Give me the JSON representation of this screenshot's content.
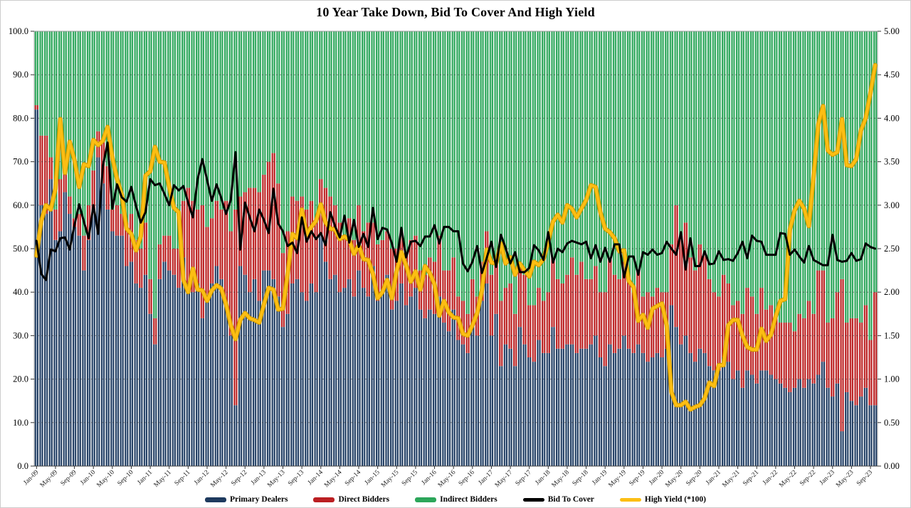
{
  "chart_data": {
    "type": "bar",
    "subtype": "stacked-100-bars-with-lines",
    "title": "10 Year Take Down, Bid To Cover And High Yield",
    "n_points": 178,
    "x_start": "Jan-09",
    "x_end": "Oct-23",
    "tick_every": 4,
    "x_ticklabels": [
      "Jan-09",
      "May-09",
      "Sep-09",
      "Jan-10",
      "May-10",
      "Sep-10",
      "Jan-11",
      "May-11",
      "Sep-11",
      "Jan-12",
      "May-12",
      "Sep-12",
      "Jan-13",
      "May-13",
      "Sep-13",
      "Jan-14",
      "May-14",
      "Sep-14",
      "Jan-15",
      "May-15",
      "Sep-15",
      "Jan-16",
      "May-16",
      "Sep-16",
      "Jan-17",
      "May-17",
      "Sep-17",
      "Jan-18",
      "May-18",
      "Sep-18",
      "Jan-19",
      "May-19",
      "Sep-19",
      "Jan-20",
      "May-20",
      "Sep-20",
      "Jan-21",
      "May-21",
      "Sep-21",
      "Jan-22",
      "May-22",
      "Sep-22",
      "Jan-23",
      "May-23",
      "Sep-23"
    ],
    "left_axis": {
      "min": 0,
      "max": 100,
      "step": 10,
      "decimals": 1
    },
    "right_axis": {
      "min": 0,
      "max": 5,
      "step": 0.5,
      "decimals": 2
    },
    "grid": "horizontal-dashed",
    "legend_position": "bottom",
    "colors": {
      "background": "#ffffff",
      "grid": "#2f2f2f",
      "axis_text": "#000000"
    },
    "series": [
      {
        "name": "Primary Dealers",
        "type": "bar",
        "axis": "left",
        "color": "#1e3a5e",
        "highlight": "#b0c0d4",
        "values": [
          82,
          60,
          58,
          66,
          52,
          54,
          63,
          58,
          55,
          53,
          45,
          52,
          58,
          71,
          65,
          59,
          54,
          53,
          53,
          46,
          47,
          42,
          41,
          44,
          35,
          28,
          43,
          47,
          45,
          44,
          41,
          48,
          42,
          40,
          42,
          34,
          38,
          42,
          46,
          43,
          37,
          30,
          14,
          46,
          44,
          40,
          43,
          38,
          45,
          45,
          43,
          39,
          32,
          35,
          42,
          43,
          40,
          38,
          42,
          40,
          53,
          47,
          43,
          44,
          40,
          41,
          43,
          39,
          45,
          41,
          39,
          46,
          38,
          40,
          44,
          36,
          38,
          42,
          37,
          39,
          41,
          36,
          34,
          36,
          35,
          39,
          33,
          31,
          36,
          29,
          28,
          26,
          32,
          30,
          38,
          42,
          30,
          35,
          23,
          28,
          27,
          23,
          32,
          28,
          25,
          24,
          29,
          26,
          26,
          32,
          27,
          27,
          28,
          28,
          26,
          27,
          27,
          28,
          30,
          25,
          23,
          28,
          26,
          27,
          30,
          27,
          26,
          28,
          26,
          24,
          25,
          26,
          25,
          27,
          37,
          32,
          28,
          30,
          26,
          24,
          27,
          26,
          23,
          22,
          22,
          25,
          24,
          20,
          22,
          18,
          22,
          21,
          19,
          22,
          22,
          21,
          20,
          19,
          18,
          17,
          18,
          20,
          18,
          20,
          19,
          21,
          24,
          18,
          16,
          19,
          8,
          17,
          15,
          14,
          16,
          18,
          14,
          14
        ]
      },
      {
        "name": "Direct Bidders",
        "type": "bar",
        "axis": "left",
        "color": "#bb1f22",
        "highlight": "#e7a9a4",
        "values": [
          1,
          16,
          18,
          5,
          7,
          12,
          6,
          4,
          2,
          5,
          8,
          8,
          10,
          6,
          10,
          10,
          5,
          7,
          5,
          10,
          11,
          10,
          9,
          12,
          8,
          6,
          8,
          6,
          8,
          6,
          9,
          13,
          22,
          21,
          17,
          26,
          17,
          15,
          15,
          16,
          24,
          24,
          45,
          16,
          19,
          24,
          21,
          25,
          22,
          25,
          29,
          26,
          17,
          19,
          20,
          18,
          22,
          21,
          19,
          17,
          13,
          17,
          19,
          16,
          16,
          12,
          14,
          13,
          15,
          13,
          17,
          10,
          13,
          12,
          10,
          14,
          12,
          11,
          12,
          13,
          12,
          9,
          10,
          12,
          12,
          14,
          12,
          14,
          12,
          10,
          10,
          9,
          11,
          9,
          9,
          12,
          14,
          12,
          15,
          13,
          15,
          12,
          14,
          16,
          12,
          13,
          12,
          12,
          14,
          16,
          16,
          15,
          16,
          20,
          18,
          20,
          16,
          15,
          16,
          15,
          17,
          20,
          18,
          16,
          17,
          16,
          14,
          17,
          13,
          16,
          14,
          15,
          15,
          13,
          14,
          28,
          25,
          26,
          22,
          21,
          24,
          23,
          20,
          18,
          17,
          19,
          18,
          17,
          16,
          17,
          19,
          18,
          16,
          19,
          14,
          16,
          15,
          14,
          15,
          16,
          13,
          15,
          16,
          18,
          16,
          24,
          21,
          15,
          18,
          21,
          35,
          16,
          19,
          20,
          17,
          19,
          15,
          26
        ]
      },
      {
        "name": "Indirect Bidders",
        "type": "bar",
        "axis": "left",
        "color": "#2ca65a",
        "highlight": "#aadcbd",
        "values": [
          17,
          24,
          24,
          29,
          41,
          34,
          31,
          38,
          43,
          42,
          47,
          40,
          32,
          23,
          25,
          31,
          41,
          40,
          42,
          44,
          42,
          48,
          50,
          44,
          57,
          66,
          49,
          47,
          47,
          50,
          50,
          39,
          36,
          39,
          41,
          40,
          45,
          43,
          39,
          41,
          39,
          46,
          41,
          38,
          37,
          36,
          36,
          37,
          33,
          30,
          28,
          35,
          51,
          46,
          38,
          39,
          38,
          41,
          39,
          43,
          34,
          36,
          38,
          40,
          44,
          47,
          43,
          48,
          40,
          46,
          44,
          44,
          49,
          48,
          46,
          50,
          50,
          47,
          51,
          48,
          47,
          55,
          56,
          52,
          53,
          47,
          55,
          55,
          52,
          61,
          62,
          65,
          57,
          61,
          53,
          46,
          56,
          53,
          62,
          59,
          58,
          65,
          54,
          56,
          63,
          63,
          59,
          62,
          60,
          52,
          57,
          58,
          56,
          52,
          56,
          53,
          57,
          57,
          54,
          60,
          60,
          52,
          56,
          57,
          53,
          57,
          60,
          55,
          61,
          60,
          61,
          59,
          60,
          60,
          49,
          40,
          47,
          44,
          52,
          55,
          49,
          51,
          57,
          60,
          61,
          56,
          58,
          63,
          62,
          65,
          59,
          61,
          65,
          59,
          64,
          63,
          65,
          67,
          67,
          67,
          69,
          65,
          66,
          62,
          65,
          55,
          55,
          67,
          66,
          60,
          57,
          67,
          66,
          66,
          67,
          63,
          71,
          60
        ]
      },
      {
        "name": "Bid To Cover",
        "type": "line",
        "axis": "right",
        "color": "#000000",
        "width": 3,
        "values": [
          2.59,
          2.21,
          2.14,
          2.49,
          2.47,
          2.62,
          2.63,
          2.49,
          2.77,
          3.01,
          2.81,
          2.62,
          3.0,
          2.67,
          3.45,
          3.72,
          2.96,
          3.24,
          3.09,
          3.04,
          3.21,
          2.99,
          2.8,
          2.92,
          3.3,
          3.23,
          3.25,
          3.13,
          3.0,
          3.23,
          3.17,
          3.22,
          3.03,
          2.86,
          3.3,
          3.53,
          3.29,
          3.05,
          3.24,
          3.08,
          2.9,
          3.06,
          3.61,
          2.49,
          3.03,
          2.86,
          2.7,
          2.95,
          2.83,
          2.68,
          3.19,
          2.79,
          2.7,
          2.53,
          2.57,
          2.45,
          2.86,
          2.58,
          2.7,
          2.61,
          2.68,
          2.54,
          2.92,
          2.76,
          2.63,
          2.88,
          2.57,
          2.83,
          2.52,
          2.67,
          2.52,
          2.97,
          2.61,
          2.74,
          2.72,
          2.56,
          2.35,
          2.74,
          2.4,
          2.58,
          2.59,
          2.53,
          2.64,
          2.64,
          2.77,
          2.56,
          2.75,
          2.75,
          2.7,
          2.7,
          2.33,
          2.24,
          2.35,
          2.53,
          2.22,
          2.39,
          2.58,
          2.29,
          2.66,
          2.51,
          2.33,
          2.46,
          2.23,
          2.23,
          2.28,
          2.54,
          2.48,
          2.37,
          2.69,
          2.34,
          2.5,
          2.46,
          2.56,
          2.59,
          2.57,
          2.55,
          2.58,
          2.39,
          2.54,
          2.35,
          2.51,
          2.35,
          2.55,
          2.55,
          2.17,
          2.41,
          2.41,
          2.2,
          2.46,
          2.43,
          2.49,
          2.43,
          2.45,
          2.58,
          2.5,
          2.43,
          2.69,
          2.26,
          2.62,
          2.3,
          2.3,
          2.47,
          2.32,
          2.33,
          2.47,
          2.37,
          2.38,
          2.36,
          2.45,
          2.58,
          2.39,
          2.65,
          2.59,
          2.58,
          2.43,
          2.43,
          2.43,
          2.68,
          2.67,
          2.43,
          2.49,
          2.41,
          2.34,
          2.53,
          2.37,
          2.34,
          2.31,
          2.31,
          2.66,
          2.37,
          2.35,
          2.36,
          2.45,
          2.36,
          2.38,
          2.56,
          2.52,
          2.5
        ]
      },
      {
        "name": "High Yield (*100)",
        "type": "line",
        "axis": "right",
        "color": "#fcbe13",
        "edge_color": "#cf9a00",
        "width": 4,
        "values": [
          2.42,
          2.82,
          3.0,
          2.95,
          3.19,
          3.99,
          3.37,
          3.73,
          3.52,
          3.21,
          3.47,
          3.45,
          3.75,
          3.69,
          3.74,
          3.9,
          3.55,
          3.3,
          3.12,
          2.73,
          2.67,
          2.48,
          2.64,
          3.34,
          3.39,
          3.67,
          3.5,
          3.49,
          3.21,
          2.97,
          2.92,
          2.14,
          2.0,
          2.27,
          2.03,
          2.02,
          1.9,
          2.02,
          2.08,
          2.04,
          1.86,
          1.62,
          1.46,
          1.68,
          1.76,
          1.7,
          1.68,
          1.65,
          1.86,
          2.05,
          2.03,
          1.8,
          1.81,
          2.21,
          2.67,
          2.62,
          2.95,
          2.66,
          2.75,
          2.82,
          3.01,
          2.8,
          2.73,
          2.72,
          2.61,
          2.64,
          2.6,
          2.44,
          2.54,
          2.38,
          2.37,
          2.21,
          1.93,
          2.0,
          2.14,
          1.93,
          2.24,
          2.46,
          2.31,
          2.12,
          2.24,
          2.03,
          2.3,
          2.22,
          2.09,
          1.73,
          1.9,
          1.77,
          1.71,
          1.7,
          1.52,
          1.5,
          1.62,
          1.76,
          2.02,
          2.49,
          2.34,
          2.33,
          2.56,
          2.33,
          2.4,
          2.2,
          2.33,
          2.25,
          2.18,
          2.35,
          2.31,
          2.38,
          2.58,
          2.81,
          2.89,
          2.8,
          3.0,
          2.96,
          2.86,
          2.96,
          3.06,
          3.23,
          3.21,
          2.92,
          2.73,
          2.69,
          2.62,
          2.47,
          2.48,
          2.13,
          2.06,
          1.67,
          1.74,
          1.59,
          1.81,
          1.84,
          1.87,
          1.62,
          0.85,
          0.7,
          0.7,
          0.74,
          0.65,
          0.68,
          0.7,
          0.78,
          0.96,
          0.92,
          1.16,
          1.16,
          1.62,
          1.68,
          1.68,
          1.5,
          1.37,
          1.34,
          1.34,
          1.58,
          1.44,
          1.51,
          1.72,
          1.9,
          1.92,
          2.72,
          2.94,
          3.05,
          2.96,
          2.76,
          3.33,
          3.93,
          4.14,
          3.63,
          3.58,
          3.61,
          3.99,
          3.46,
          3.45,
          3.53,
          3.86,
          4.0,
          4.29,
          4.61
        ]
      }
    ]
  }
}
